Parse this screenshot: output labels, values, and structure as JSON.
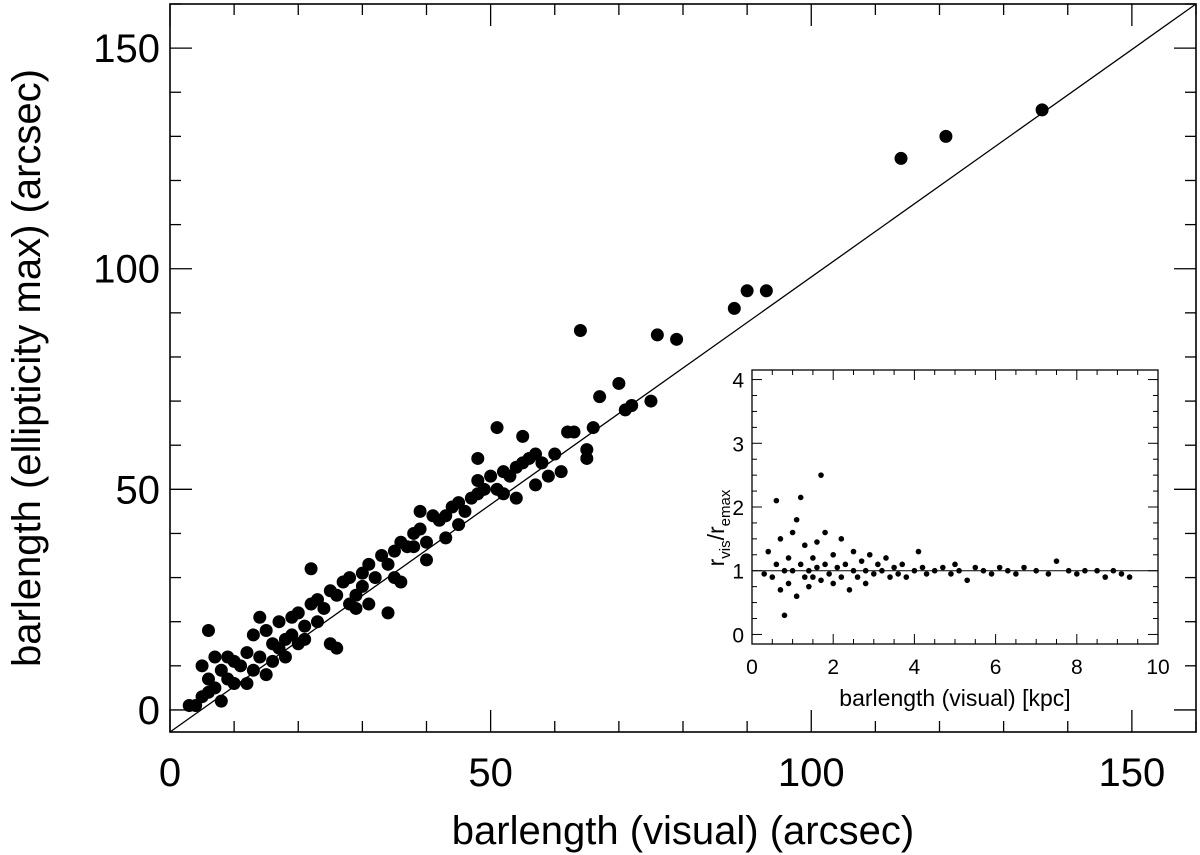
{
  "chart_data": [
    {
      "type": "scatter",
      "xlabel": "barlength (visual) (arcsec)",
      "ylabel": "barlength (ellipticity max) (arcsec)",
      "xlim": [
        0,
        160
      ],
      "ylim": [
        -5,
        160
      ],
      "x_ticks": [
        0,
        50,
        100,
        150
      ],
      "y_ticks": [
        0,
        50,
        100,
        150
      ],
      "x_tick_labels": [
        "0",
        "50",
        "100",
        "150"
      ],
      "y_tick_labels": [
        "0",
        "50",
        "100",
        "150"
      ],
      "grid": false,
      "reference_line": {
        "type": "one-to-one",
        "from": [
          0,
          -5
        ],
        "to": [
          160,
          160
        ]
      },
      "points": [
        [
          5,
          10
        ],
        [
          7,
          12
        ],
        [
          6,
          7
        ],
        [
          8,
          9
        ],
        [
          9,
          12
        ],
        [
          10,
          6
        ],
        [
          11,
          10
        ],
        [
          12,
          13
        ],
        [
          13,
          17
        ],
        [
          14,
          12
        ],
        [
          15,
          18
        ],
        [
          16,
          15
        ],
        [
          17,
          20
        ],
        [
          18,
          16
        ],
        [
          19,
          21
        ],
        [
          20,
          22
        ],
        [
          21,
          19
        ],
        [
          22,
          24
        ],
        [
          23,
          25
        ],
        [
          24,
          23
        ],
        [
          25,
          27
        ],
        [
          26,
          26
        ],
        [
          27,
          29
        ],
        [
          28,
          30
        ],
        [
          29,
          26
        ],
        [
          30,
          31
        ],
        [
          31,
          33
        ],
        [
          32,
          30
        ],
        [
          33,
          35
        ],
        [
          34,
          33
        ],
        [
          35,
          36
        ],
        [
          36,
          38
        ],
        [
          37,
          37
        ],
        [
          38,
          40
        ],
        [
          39,
          41
        ],
        [
          40,
          38
        ],
        [
          41,
          44
        ],
        [
          42,
          43
        ],
        [
          43,
          44
        ],
        [
          44,
          46
        ],
        [
          45,
          47
        ],
        [
          46,
          45
        ],
        [
          47,
          48
        ],
        [
          48,
          52
        ],
        [
          49,
          50
        ],
        [
          50,
          53
        ],
        [
          51,
          50
        ],
        [
          52,
          54
        ],
        [
          53,
          53
        ],
        [
          54,
          55
        ],
        [
          55,
          56
        ],
        [
          56,
          57
        ],
        [
          57,
          58
        ],
        [
          58,
          56
        ],
        [
          60,
          58
        ],
        [
          62,
          63
        ],
        [
          63,
          63
        ],
        [
          65,
          59
        ],
        [
          66,
          64
        ],
        [
          67,
          71
        ],
        [
          70,
          74
        ],
        [
          71,
          68
        ],
        [
          72,
          69
        ],
        [
          75,
          70
        ],
        [
          76,
          85
        ],
        [
          79,
          84
        ],
        [
          88,
          91
        ],
        [
          90,
          95
        ],
        [
          93,
          95
        ],
        [
          114,
          125
        ],
        [
          121,
          130
        ],
        [
          136,
          136
        ],
        [
          3,
          1
        ],
        [
          4,
          1
        ],
        [
          5,
          3
        ],
        [
          6,
          18
        ],
        [
          6,
          4
        ],
        [
          7,
          5
        ],
        [
          8,
          2
        ],
        [
          9,
          7
        ],
        [
          10,
          11
        ],
        [
          12,
          6
        ],
        [
          13,
          9
        ],
        [
          14,
          21
        ],
        [
          15,
          8
        ],
        [
          16,
          11
        ],
        [
          17,
          14
        ],
        [
          18,
          12
        ],
        [
          19,
          17
        ],
        [
          20,
          15
        ],
        [
          21,
          16
        ],
        [
          22,
          32
        ],
        [
          23,
          20
        ],
        [
          25,
          15
        ],
        [
          26,
          14
        ],
        [
          28,
          24
        ],
        [
          29,
          23
        ],
        [
          30,
          28
        ],
        [
          31,
          24
        ],
        [
          34,
          22
        ],
        [
          35,
          30
        ],
        [
          36,
          29
        ],
        [
          38,
          37
        ],
        [
          39,
          45
        ],
        [
          40,
          34
        ],
        [
          43,
          39
        ],
        [
          45,
          42
        ],
        [
          48,
          57
        ],
        [
          48,
          49
        ],
        [
          51,
          64
        ],
        [
          52,
          49
        ],
        [
          54,
          48
        ],
        [
          55,
          62
        ],
        [
          57,
          51
        ],
        [
          59,
          53
        ],
        [
          61,
          54
        ],
        [
          64,
          86
        ],
        [
          65,
          57
        ]
      ]
    },
    {
      "type": "scatter",
      "xlabel": "barlength (visual) [kpc]",
      "ylabel": "r_vis/r_emax",
      "ylabel_main": "r",
      "ylabel_sub1": "vis",
      "ylabel_sep": "/r",
      "ylabel_sub2": "emax",
      "xlim": [
        0,
        10
      ],
      "ylim": [
        -0.15,
        4.15
      ],
      "x_ticks": [
        0,
        2,
        4,
        6,
        8,
        10
      ],
      "y_ticks": [
        0,
        1,
        2,
        3,
        4
      ],
      "x_tick_labels": [
        "0",
        "2",
        "4",
        "6",
        "8",
        "10"
      ],
      "y_tick_labels": [
        "0",
        "1",
        "2",
        "3",
        "4"
      ],
      "grid": false,
      "reference_line": {
        "type": "horizontal",
        "y": 1
      },
      "points": [
        [
          0.3,
          0.95
        ],
        [
          0.4,
          1.3
        ],
        [
          0.5,
          0.9
        ],
        [
          0.6,
          1.1
        ],
        [
          0.6,
          2.1
        ],
        [
          0.7,
          0.7
        ],
        [
          0.7,
          1.5
        ],
        [
          0.8,
          1.0
        ],
        [
          0.8,
          0.3
        ],
        [
          0.9,
          1.2
        ],
        [
          0.9,
          0.8
        ],
        [
          1.0,
          1.6
        ],
        [
          1.0,
          1.0
        ],
        [
          1.1,
          0.6
        ],
        [
          1.1,
          1.8
        ],
        [
          1.2,
          1.1
        ],
        [
          1.2,
          2.15
        ],
        [
          1.3,
          0.9
        ],
        [
          1.3,
          1.4
        ],
        [
          1.4,
          1.0
        ],
        [
          1.4,
          0.75
        ],
        [
          1.5,
          1.2
        ],
        [
          1.5,
          0.9
        ],
        [
          1.6,
          1.05
        ],
        [
          1.6,
          1.45
        ],
        [
          1.7,
          2.5
        ],
        [
          1.7,
          0.85
        ],
        [
          1.8,
          1.1
        ],
        [
          1.8,
          1.6
        ],
        [
          1.9,
          0.95
        ],
        [
          2.0,
          1.25
        ],
        [
          2.0,
          0.8
        ],
        [
          2.1,
          1.05
        ],
        [
          2.2,
          1.5
        ],
        [
          2.2,
          0.9
        ],
        [
          2.3,
          1.1
        ],
        [
          2.4,
          0.7
        ],
        [
          2.5,
          1.0
        ],
        [
          2.5,
          1.3
        ],
        [
          2.6,
          0.9
        ],
        [
          2.7,
          1.15
        ],
        [
          2.8,
          1.0
        ],
        [
          2.8,
          0.8
        ],
        [
          2.9,
          1.25
        ],
        [
          3.0,
          0.95
        ],
        [
          3.1,
          1.1
        ],
        [
          3.2,
          1.0
        ],
        [
          3.3,
          1.2
        ],
        [
          3.4,
          0.9
        ],
        [
          3.5,
          1.05
        ],
        [
          3.6,
          0.95
        ],
        [
          3.7,
          1.1
        ],
        [
          3.8,
          0.9
        ],
        [
          4.0,
          1.0
        ],
        [
          4.1,
          1.3
        ],
        [
          4.2,
          1.05
        ],
        [
          4.3,
          0.95
        ],
        [
          4.5,
          1.0
        ],
        [
          4.7,
          1.05
        ],
        [
          4.9,
          0.95
        ],
        [
          5.0,
          1.1
        ],
        [
          5.1,
          1.0
        ],
        [
          5.3,
          0.85
        ],
        [
          5.5,
          1.05
        ],
        [
          5.7,
          1.0
        ],
        [
          5.9,
          0.95
        ],
        [
          6.1,
          1.05
        ],
        [
          6.3,
          1.0
        ],
        [
          6.5,
          0.95
        ],
        [
          6.7,
          1.05
        ],
        [
          7.0,
          1.0
        ],
        [
          7.3,
          0.95
        ],
        [
          7.5,
          1.15
        ],
        [
          7.8,
          1.0
        ],
        [
          8.0,
          0.95
        ],
        [
          8.2,
          1.0
        ],
        [
          8.5,
          1.0
        ],
        [
          8.7,
          0.9
        ],
        [
          8.9,
          1.0
        ],
        [
          9.1,
          0.95
        ],
        [
          9.3,
          0.9
        ]
      ]
    }
  ]
}
